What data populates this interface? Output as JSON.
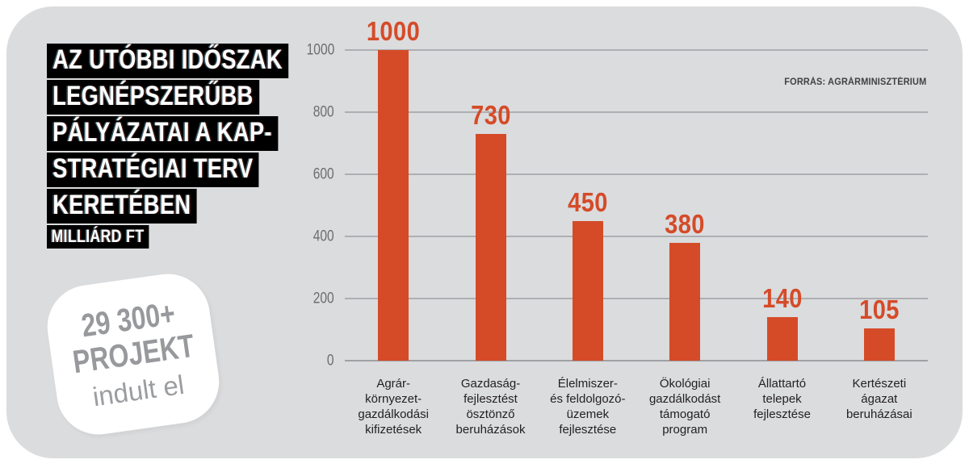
{
  "header": {
    "title_lines": [
      "AZ UTÓBBI IDŐSZAK",
      "LEGNÉPSZERŰBB",
      "PÁLYÁZATAI A KAP-",
      "STRATÉGIAI TERV",
      "KERETÉBEN"
    ],
    "subtitle": "MILLIÁRD FT"
  },
  "badge": {
    "line1": "29 300+",
    "line2": "PROJEKT",
    "line3": "indult el"
  },
  "chart_data": {
    "type": "bar",
    "title": "Az utóbbi időszak legnépszerűbb pályázatai a KAP-stratégiai terv keretében",
    "unit": "milliárd Ft",
    "categories": [
      "Agrár-\nkörnyezet-\ngazdálkodási\nkifizetések",
      "Gazdaság-\nfejlesztést\nösztönző\nberuházások",
      "Élelmiszer-\nés feldolgozó-\nüzemek\nfejlesztése",
      "Ökológiai\ngazdálkodást\ntámogató\nprogram",
      "Állattartó\ntelepek\nfejlesztése",
      "Kertészeti\nágazat\nberuházásai"
    ],
    "values": [
      1000,
      730,
      450,
      380,
      140,
      105
    ],
    "ylim": [
      0,
      1000
    ],
    "yticks": [
      0,
      200,
      400,
      600,
      800,
      1000
    ],
    "grid": true,
    "legend": false,
    "source": "FORRÁS: AGRÁRMINISZTÉRIUM"
  },
  "colors": {
    "panel_bg": "#dbdcde",
    "accent": "#d54b28",
    "title_bg": "#000000",
    "title_text": "#ffffff",
    "badge_bg": "#ffffff",
    "badge_text": "#97999c",
    "tick_text": "#6d6e70",
    "gridline": "#adafb2",
    "category_text": "#232124",
    "source_text": "#414042"
  }
}
